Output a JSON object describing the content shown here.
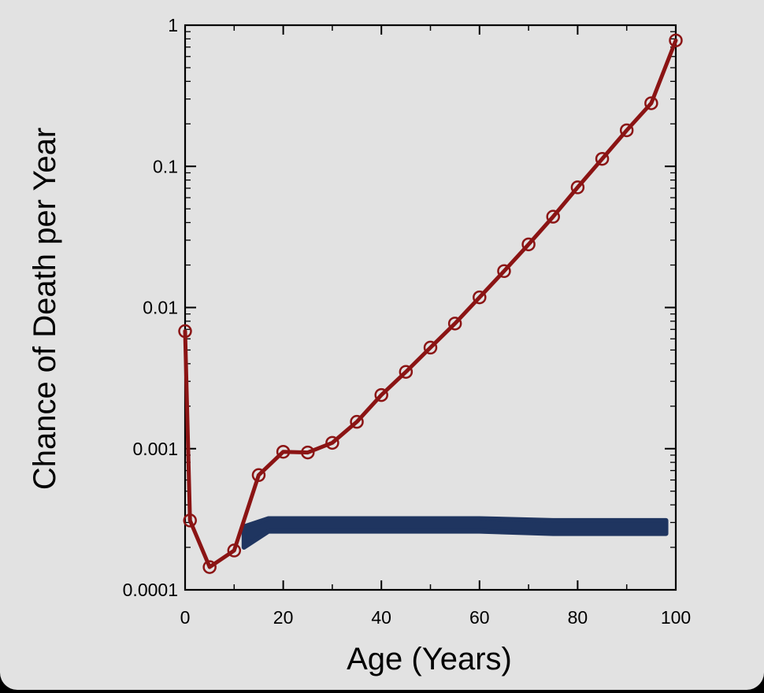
{
  "chart_data": {
    "type": "line",
    "title": "",
    "xlabel": "Age (Years)",
    "ylabel": "Chance of Death per Year",
    "xlim": [
      0,
      100
    ],
    "ylim": [
      0.0001,
      1
    ],
    "yscale": "log",
    "grid": false,
    "x_ticks": [
      "0",
      "20",
      "40",
      "60",
      "80",
      "100"
    ],
    "y_ticks": [
      "0.0001",
      "0.001",
      "0.01",
      "0.1",
      "1"
    ],
    "series": [
      {
        "color": "#8b1414",
        "marker": "open-circle",
        "x": [
          0,
          1,
          5,
          10,
          15,
          20,
          25,
          30,
          35,
          40,
          45,
          50,
          55,
          60,
          65,
          70,
          75,
          80,
          85,
          90,
          95,
          100
        ],
        "y": [
          0.0068,
          0.00031,
          0.000145,
          0.00019,
          0.00065,
          0.00095,
          0.00094,
          0.0011,
          0.00155,
          0.0024,
          0.0035,
          0.0052,
          0.0077,
          0.0118,
          0.0181,
          0.028,
          0.044,
          0.071,
          0.113,
          0.18,
          0.28,
          0.78
        ]
      }
    ],
    "band": {
      "color": "#1f3560",
      "x": [
        12,
        17,
        60,
        75,
        98
      ],
      "y_upper": [
        0.00028,
        0.00032,
        0.00032,
        0.00031,
        0.00031
      ],
      "y_lower": [
        0.0002,
        0.00026,
        0.00026,
        0.00025,
        0.00025
      ]
    }
  }
}
